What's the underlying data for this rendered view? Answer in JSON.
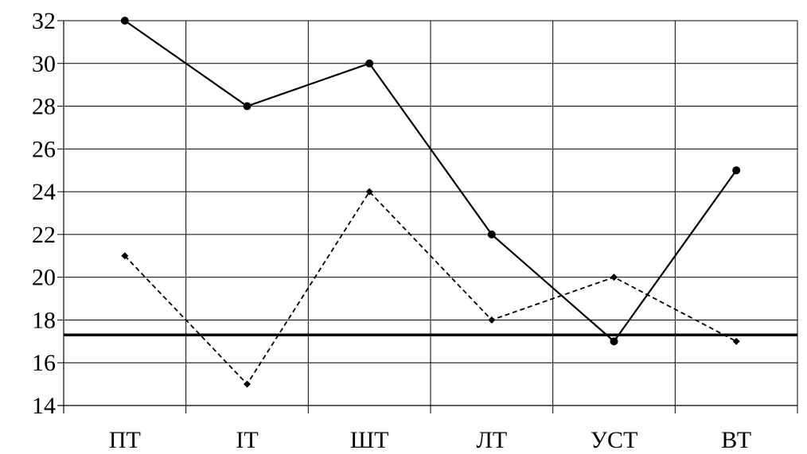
{
  "chart_data": {
    "type": "line",
    "categories": [
      "ПТ",
      "ІТ",
      "ШТ",
      "ЛТ",
      "УСТ",
      "ВТ"
    ],
    "series": [
      {
        "values": [
          32,
          28,
          30,
          22,
          17,
          25
        ],
        "style": "solid",
        "marker": "circle",
        "color": "#000000"
      },
      {
        "values": [
          21,
          15,
          24,
          18,
          20,
          17
        ],
        "style": "dashed",
        "marker": "diamond",
        "color": "#000000"
      }
    ],
    "reference_line": {
      "value": 17.3,
      "color": "#000000"
    },
    "ylim": [
      14,
      32
    ],
    "yticks": [
      14,
      16,
      18,
      20,
      22,
      24,
      26,
      28,
      30,
      32
    ],
    "grid": true,
    "legend": "none",
    "title": "",
    "xlabel": "",
    "ylabel": ""
  }
}
